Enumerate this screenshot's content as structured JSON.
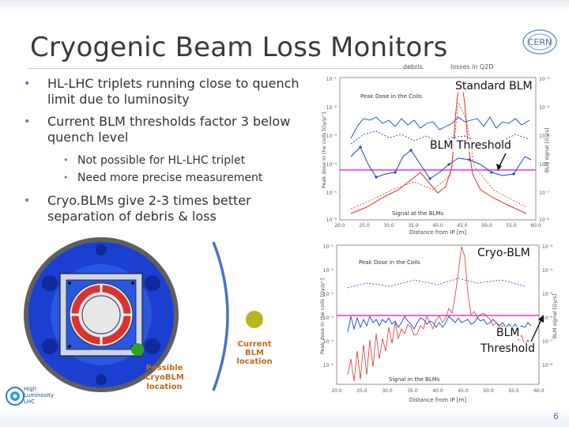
{
  "slide": {
    "title": "Cryogenic Beam Loss Monitors",
    "page_number": "6"
  },
  "bullets": [
    {
      "level": 1,
      "text": "HL-LHC triplets running close to quench limit due to luminosity"
    },
    {
      "level": 1,
      "text": "Current BLM thresholds factor 3 below quench level"
    },
    {
      "level": 2,
      "text": "Not possible for HL-LHC triplet"
    },
    {
      "level": 2,
      "text": "Need more precise measurement"
    },
    {
      "level": 1,
      "text": "Cryo.BLMs give 2-3 times better separation of debris & loss"
    }
  ],
  "logos": {
    "cern": "CERN",
    "hl_lhc": [
      "High",
      "Luminosity",
      "LHC"
    ]
  },
  "diagram": {
    "labels": {
      "possible": "Possible CryoBLM location",
      "current": "Current BLM location"
    },
    "colors": {
      "blue": "#1646c6",
      "red": "#d9342b",
      "green": "#2aa52a",
      "olive": "#b9b51c"
    }
  },
  "plot_top": {
    "legend": [
      "debris",
      "losses in Q2D"
    ],
    "inner_labels": {
      "top": "Peak Dose in the Coils",
      "bottom": "Signal at the BLMs"
    },
    "annotations": {
      "standard": "Standard BLM",
      "threshold": "BLM Threshold"
    },
    "xlabel": "Distance from IP [m]",
    "ylabel_left": "Peak dose in the coils [Gy/p⁺]",
    "ylabel_right": "BLM signal [Gy/s]"
  },
  "plot_bottom": {
    "inner_labels": {
      "top": "Peak Dose in the Coils",
      "bottom": "Signal in the BLMs"
    },
    "annotations": {
      "cryo": "Cryo-BLM",
      "threshold_line1": "BLM",
      "threshold_line2": "Threshold"
    },
    "xlabel": "Distance from IP [m]",
    "ylabel_left": "Peak dose in the coils [Gy/p⁺]",
    "ylabel_right": "BLM signal [Gy/s]"
  },
  "chart_data": [
    {
      "type": "line",
      "x": [
        20,
        22,
        24,
        26,
        28,
        30,
        32,
        34,
        36,
        38,
        40,
        42,
        44,
        46,
        48,
        50,
        52,
        54,
        56,
        58,
        60
      ],
      "xlim": [
        20,
        60
      ],
      "ylim": [
        "1e-7",
        "1e1"
      ],
      "log_y": true,
      "series": [
        {
          "name": "debris",
          "color": "#1646c6",
          "points": "blue dashed/solid curves"
        },
        {
          "name": "losses in Q2D",
          "color": "#d9342b"
        }
      ],
      "threshold_color": "#e033e0",
      "x_ticks": [
        "20.0",
        "25.0",
        "30.0",
        "35.0",
        "40.0",
        "45.0",
        "50.0",
        "55.0",
        "60.0"
      ]
    },
    {
      "type": "line",
      "xlim": [
        20,
        60
      ],
      "log_y": true,
      "series": [
        {
          "name": "debris",
          "color": "#1646c6"
        },
        {
          "name": "losses in Q2D",
          "color": "#d9342b"
        }
      ],
      "threshold_color": "#e033e0",
      "x_ticks": [
        "20.0",
        "25.0",
        "30.0",
        "35.0",
        "40.0",
        "45.0",
        "50.0",
        "55.0",
        "60.0"
      ]
    }
  ]
}
